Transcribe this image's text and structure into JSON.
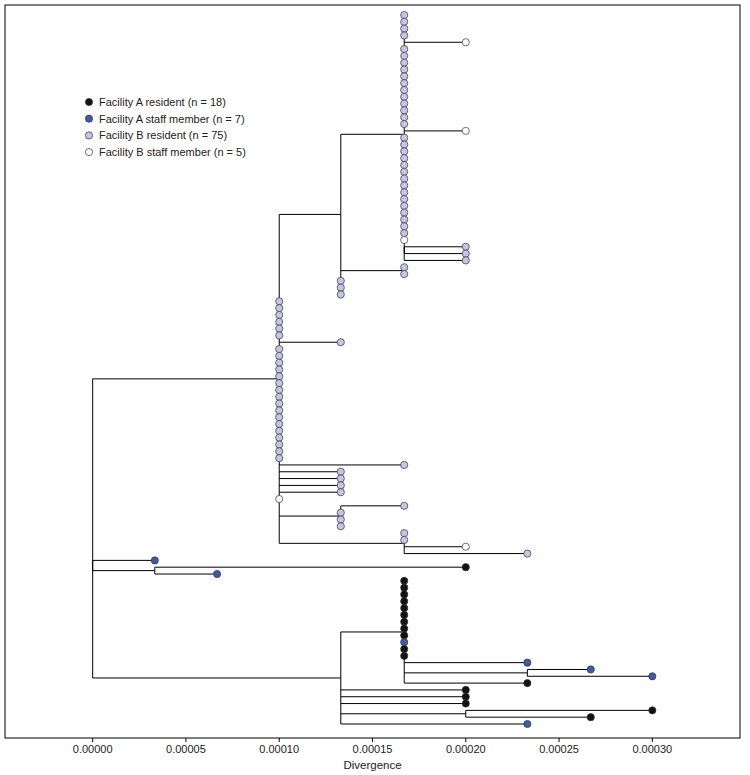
{
  "chart_data": {
    "type": "tree",
    "xlabel": "Divergence",
    "xlim": [
      -4.7e-05,
      0.000347
    ],
    "xticks": [
      {
        "value": 0,
        "label": "0.00000"
      },
      {
        "value": 5e-05,
        "label": "0.00005"
      },
      {
        "value": 0.0001,
        "label": "0.00010"
      },
      {
        "value": 0.00015,
        "label": "0.00015"
      },
      {
        "value": 0.0002,
        "label": "0.00020"
      },
      {
        "value": 0.00025,
        "label": "0.00025"
      },
      {
        "value": 0.0003,
        "label": "0.00030"
      }
    ],
    "legend": "upper left",
    "marker": "circle",
    "series": [
      {
        "name": "Facility A resident (n = 18)",
        "color": "#111111"
      },
      {
        "name": "Facility A staff member (n = 7)",
        "color": "#3f5aa8"
      },
      {
        "name": "Facility B resident (n = 75)",
        "color": "#c3c6e6"
      },
      {
        "name": "Facility B staff member (n = 5)",
        "color": "#ffffff"
      }
    ],
    "tree": {
      "x": 0,
      "children": [
        {
          "x": 0.0001,
          "children": [
            {
              "x": 0.000133,
              "children": [
                {
                  "x": 0.000167,
                  "children": [
                    {
                      "x": 0.000167,
                      "group": 2
                    },
                    {
                      "x": 0.000167,
                      "group": 2
                    },
                    {
                      "x": 0.000167,
                      "group": 2
                    },
                    {
                      "x": 0.000167,
                      "group": 2
                    },
                    {
                      "x": 0.0002,
                      "group": 3
                    },
                    {
                      "x": 0.000167,
                      "group": 2
                    },
                    {
                      "x": 0.000167,
                      "group": 2
                    },
                    {
                      "x": 0.000167,
                      "group": 2
                    },
                    {
                      "x": 0.000167,
                      "group": 2
                    },
                    {
                      "x": 0.000167,
                      "group": 2
                    },
                    {
                      "x": 0.000167,
                      "group": 2
                    },
                    {
                      "x": 0.000167,
                      "group": 2
                    },
                    {
                      "x": 0.000167,
                      "group": 2
                    },
                    {
                      "x": 0.000167,
                      "group": 2
                    },
                    {
                      "x": 0.000167,
                      "group": 2
                    },
                    {
                      "x": 0.000167,
                      "group": 2
                    },
                    {
                      "x": 0.000167,
                      "group": 2
                    },
                    {
                      "x": 0.0002,
                      "group": 3
                    },
                    {
                      "x": 0.000167,
                      "group": 2
                    },
                    {
                      "x": 0.000167,
                      "group": 2
                    },
                    {
                      "x": 0.000167,
                      "group": 2
                    },
                    {
                      "x": 0.000167,
                      "group": 2
                    },
                    {
                      "x": 0.000167,
                      "group": 2
                    },
                    {
                      "x": 0.000167,
                      "group": 2
                    },
                    {
                      "x": 0.000167,
                      "group": 2
                    },
                    {
                      "x": 0.000167,
                      "group": 2
                    },
                    {
                      "x": 0.000167,
                      "group": 2
                    },
                    {
                      "x": 0.000167,
                      "group": 2
                    },
                    {
                      "x": 0.000167,
                      "group": 2
                    },
                    {
                      "x": 0.000167,
                      "group": 2
                    },
                    {
                      "x": 0.000167,
                      "group": 2
                    },
                    {
                      "x": 0.000167,
                      "group": 2
                    },
                    {
                      "x": 0.000167,
                      "group": 2
                    },
                    {
                      "x": 0.000167,
                      "group": 3
                    },
                    {
                      "x": 0.000167,
                      "children": [
                        {
                          "x": 0.0002,
                          "group": 2
                        },
                        {
                          "x": 0.0002,
                          "group": 2
                        },
                        {
                          "x": 0.0002,
                          "group": 2
                        }
                      ]
                    }
                  ]
                },
                {
                  "x": 0.000167,
                  "children": [
                    {
                      "x": 0.000167,
                      "group": 2
                    },
                    {
                      "x": 0.000167,
                      "group": 2
                    }
                  ]
                },
                {
                  "x": 0.000133,
                  "group": 2
                },
                {
                  "x": 0.000133,
                  "group": 2
                },
                {
                  "x": 0.000133,
                  "group": 2
                }
              ]
            },
            {
              "x": 0.0001,
              "group": 2
            },
            {
              "x": 0.0001,
              "group": 2
            },
            {
              "x": 0.0001,
              "group": 2
            },
            {
              "x": 0.0001,
              "group": 2
            },
            {
              "x": 0.0001,
              "group": 2
            },
            {
              "x": 0.0001,
              "group": 2
            },
            {
              "x": 0.000133,
              "group": 2
            },
            {
              "x": 0.0001,
              "group": 2
            },
            {
              "x": 0.0001,
              "group": 2
            },
            {
              "x": 0.0001,
              "group": 2
            },
            {
              "x": 0.0001,
              "group": 2
            },
            {
              "x": 0.0001,
              "group": 2
            },
            {
              "x": 0.0001,
              "group": 2
            },
            {
              "x": 0.0001,
              "group": 2
            },
            {
              "x": 0.0001,
              "group": 2
            },
            {
              "x": 0.0001,
              "group": 2
            },
            {
              "x": 0.0001,
              "group": 2
            },
            {
              "x": 0.0001,
              "group": 2
            },
            {
              "x": 0.0001,
              "group": 2
            },
            {
              "x": 0.0001,
              "group": 2
            },
            {
              "x": 0.0001,
              "group": 2
            },
            {
              "x": 0.0001,
              "group": 2
            },
            {
              "x": 0.0001,
              "group": 2
            },
            {
              "x": 0.0001,
              "group": 2
            },
            {
              "x": 0.000167,
              "group": 2
            },
            {
              "x": 0.000133,
              "group": 2
            },
            {
              "x": 0.000133,
              "group": 2
            },
            {
              "x": 0.000133,
              "group": 2
            },
            {
              "x": 0.000133,
              "group": 2
            },
            {
              "x": 0.0001,
              "group": 3
            },
            {
              "x": 0.000133,
              "children": [
                {
                  "x": 0.000167,
                  "group": 2
                },
                {
                  "x": 0.000133,
                  "group": 2
                },
                {
                  "x": 0.000133,
                  "group": 2
                },
                {
                  "x": 0.000133,
                  "group": 2
                }
              ]
            },
            {
              "x": 0.000167,
              "children": [
                {
                  "x": 0.000167,
                  "group": 2
                },
                {
                  "x": 0.000167,
                  "group": 2
                },
                {
                  "x": 0.0002,
                  "group": 3
                },
                {
                  "x": 0.000233,
                  "group": 2
                }
              ]
            }
          ]
        },
        {
          "x": 0,
          "children": [
            {
              "x": 3.33e-05,
              "group": 1
            },
            {
              "x": 3.33e-05,
              "children": [
                {
                  "x": 0.0002,
                  "group": 0
                },
                {
                  "x": 6.67e-05,
                  "group": 1
                }
              ]
            }
          ]
        },
        {
          "x": 0.000133,
          "children": [
            {
              "x": 0.000167,
              "children": [
                {
                  "x": 0.000167,
                  "group": 0
                },
                {
                  "x": 0.000167,
                  "group": 0
                },
                {
                  "x": 0.000167,
                  "group": 0
                },
                {
                  "x": 0.000167,
                  "group": 0
                },
                {
                  "x": 0.000167,
                  "group": 0
                },
                {
                  "x": 0.000167,
                  "group": 0
                },
                {
                  "x": 0.000167,
                  "group": 0
                },
                {
                  "x": 0.000167,
                  "group": 0
                },
                {
                  "x": 0.000167,
                  "group": 0
                },
                {
                  "x": 0.000167,
                  "group": 1
                },
                {
                  "x": 0.000167,
                  "group": 0
                },
                {
                  "x": 0.000167,
                  "group": 0
                },
                {
                  "x": 0.000233,
                  "group": 1
                },
                {
                  "x": 0.000233,
                  "children": [
                    {
                      "x": 0.000267,
                      "group": 1
                    },
                    {
                      "x": 0.0003,
                      "group": 1
                    }
                  ]
                },
                {
                  "x": 0.000233,
                  "group": 0
                }
              ]
            },
            {
              "x": 0.0002,
              "group": 0
            },
            {
              "x": 0.0002,
              "group": 0
            },
            {
              "x": 0.0002,
              "group": 0
            },
            {
              "x": 0.0002,
              "children": [
                {
                  "x": 0.0003,
                  "group": 0
                },
                {
                  "x": 0.000267,
                  "group": 0
                }
              ]
            },
            {
              "x": 0.000233,
              "group": 1
            }
          ]
        }
      ]
    }
  }
}
